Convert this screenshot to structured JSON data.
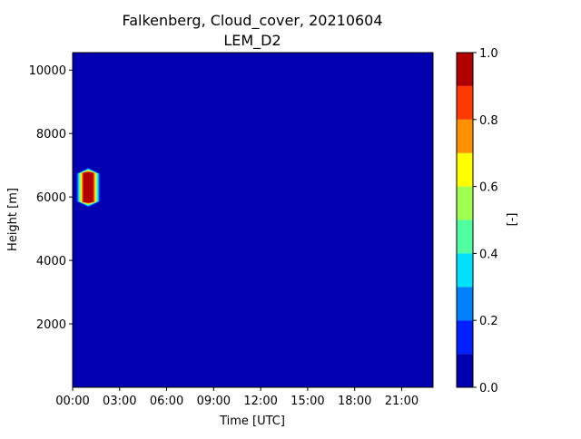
{
  "chart_data": {
    "type": "heatmap",
    "title": "Falkenberg, Cloud_cover, 20210604",
    "subtitle": "LEM_D2",
    "xlabel": "Time [UTC]",
    "ylabel": "Height [m]",
    "colorbar_label": "[-]",
    "x_ticks": [
      "00:00",
      "03:00",
      "06:00",
      "09:00",
      "12:00",
      "15:00",
      "18:00",
      "21:00"
    ],
    "x_tick_hours": [
      0,
      3,
      6,
      9,
      12,
      15,
      18,
      21
    ],
    "xlim_hours": [
      0,
      23
    ],
    "y_ticks": [
      "2000",
      "4000",
      "6000",
      "8000",
      "10000"
    ],
    "y_tick_values": [
      2000,
      4000,
      6000,
      8000,
      10000
    ],
    "ylim": [
      0,
      10550
    ],
    "colorbar_ticks": [
      "0.0",
      "0.2",
      "0.4",
      "0.6",
      "0.8",
      "1.0"
    ],
    "colorbar_tick_values": [
      0.0,
      0.2,
      0.4,
      0.6,
      0.8,
      1.0
    ],
    "levels": [
      0.0,
      0.1,
      0.2,
      0.3,
      0.4,
      0.5,
      0.6,
      0.7,
      0.8,
      0.9,
      1.0
    ],
    "level_colors": [
      "#0000b0",
      "#0020ff",
      "#0080ff",
      "#00e0ff",
      "#50ffa0",
      "#a0ff50",
      "#ffff00",
      "#ff9000",
      "#ff3a00",
      "#b00000"
    ],
    "background_value": 0.0,
    "cloud_feature": {
      "center_hour": 1.0,
      "center_height_m": 6300,
      "half_width_hours": 0.75,
      "half_height_m": 620,
      "peak_value": 1.0,
      "description_values": "Isolated cloud layer near 01:00 UTC, ~5700-6900 m, cloud cover rising to 1.0 at its core"
    }
  }
}
